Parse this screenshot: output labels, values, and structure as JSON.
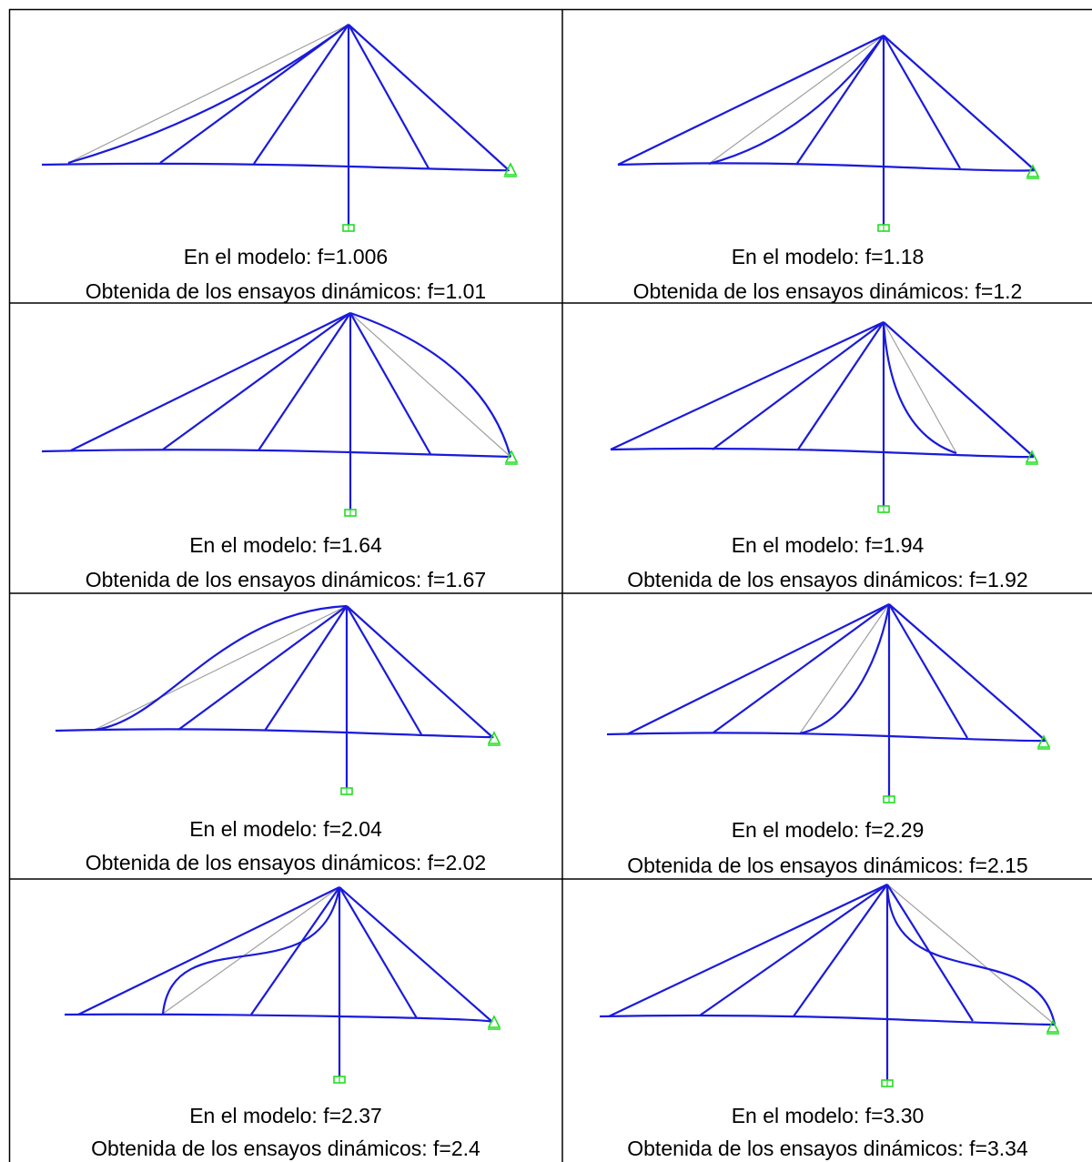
{
  "colors": {
    "member": "#1a1adc",
    "original": "#a0a0a0",
    "support": "#22dd22",
    "border": "#000000"
  },
  "cells": [
    {
      "label_model": "En el modelo: f=1.006",
      "label_test": "Obtenida de los ensayos dinámicos: f=1.01"
    },
    {
      "label_model": "En el modelo: f=1.18",
      "label_test": "Obtenida de los ensayos dinámicos: f=1.2"
    },
    {
      "label_model": "En el modelo: f=1.64",
      "label_test": "Obtenida de los ensayos dinámicos: f=1.67"
    },
    {
      "label_model": "En el modelo: f=1.94",
      "label_test": "Obtenida de los ensayos dinámicos: f=1.92"
    },
    {
      "label_model": "En el modelo: f=2.04",
      "label_test": "Obtenida de los ensayos dinámicos: f=2.02"
    },
    {
      "label_model": "En el modelo: f=2.29",
      "label_test": "Obtenida de los ensayos dinámicos: f=2.15"
    },
    {
      "label_model": "En el modelo: f=2.37",
      "label_test": "Obtenida de los ensayos dinámicos: f=2.4"
    },
    {
      "label_model": "En el modelo: f=3.30",
      "label_test": "Obtenida de los ensayos dinámicos: f=3.34"
    }
  ]
}
